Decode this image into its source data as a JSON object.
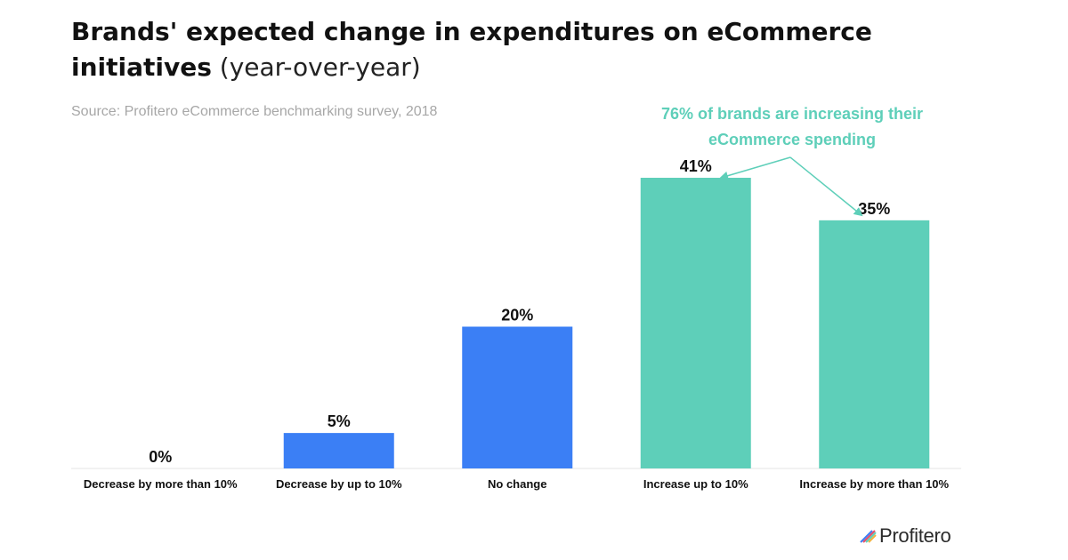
{
  "title": {
    "bold": "Brands' expected change in expenditures on eCommerce initiatives",
    "light": " (year-over-year)"
  },
  "source": "Source: Profitero eCommerce benchmarking survey, 2018",
  "annotation": "76% of brands are increasing their eCommerce spending",
  "logo_text": "Profitero",
  "chart_data": {
    "type": "bar",
    "categories": [
      "Decrease by more than 10%",
      "Decrease by up to 10%",
      "No change",
      "Increase up to 10%",
      "Increase by more than 10%"
    ],
    "values": [
      0,
      5,
      20,
      41,
      35
    ],
    "labels": [
      "0%",
      "5%",
      "20%",
      "41%",
      "35%"
    ],
    "colors": [
      "#3b7ff5",
      "#3b7ff5",
      "#3b7ff5",
      "#5ecfb9",
      "#5ecfb9"
    ],
    "ylim": [
      0,
      41
    ],
    "grid": false,
    "title": "Brands' expected change in expenditures on eCommerce initiatives (year-over-year)"
  }
}
